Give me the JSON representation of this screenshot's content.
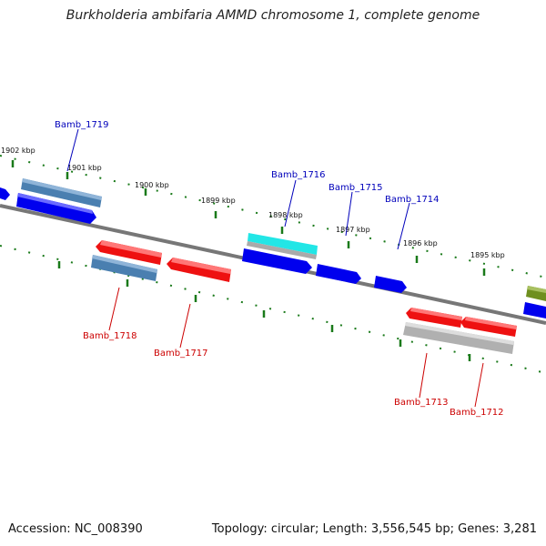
{
  "title": "Burkholderia ambifaria AMMD chromosome 1, complete genome",
  "footer": {
    "accession": "Accession: NC_008390",
    "topology": "Topology: circular; Length: 3,556,545 bp; Genes: 3,281"
  },
  "kbp_labels": [
    "1902 kbp",
    "1901 kbp",
    "1900 kbp",
    "1899 kbp",
    "1898 kbp",
    "1897 kbp",
    "1896 kbp",
    "1895 kbp"
  ],
  "gene_labels": [
    "Bamb_1719",
    "Bamb_1716",
    "Bamb_1715",
    "Bamb_1714",
    "Bamb_1718",
    "Bamb_1717",
    "Bamb_1713",
    "Bamb_1712"
  ],
  "colors": {
    "backbone": "#777777",
    "ticks": "#1a7a1a",
    "forward": "#0000ee",
    "reverse": "#ee1111",
    "steelblue": "#4a7fb0",
    "cyan": "#22e6e6",
    "grey": "#b0b0b0",
    "olive": "#6f8f1f",
    "label_blue": "#0000bb",
    "label_red": "#cc0000"
  }
}
